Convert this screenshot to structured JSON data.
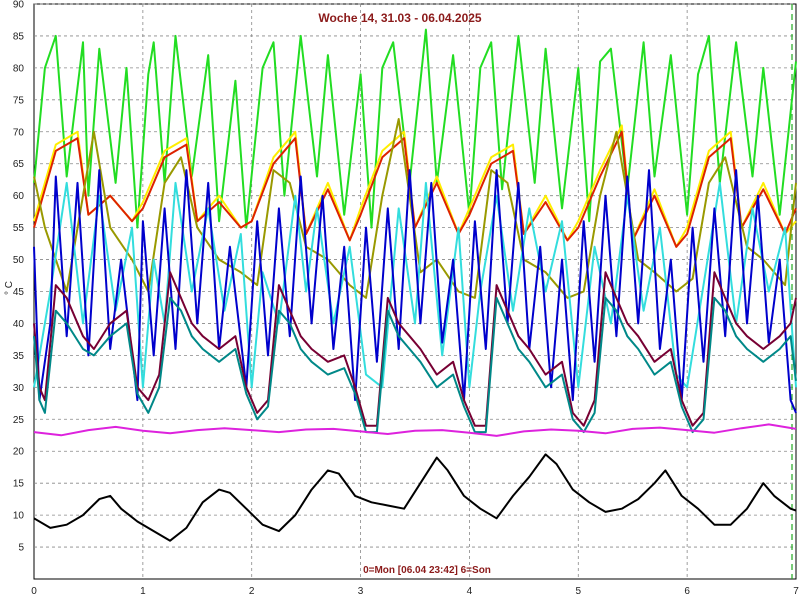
{
  "chart_data": {
    "type": "line",
    "title": "Woche 14, 31.03 - 06.04.2025",
    "footer": "0=Mon [06.04 23:42] 6=Son",
    "ylabel": "° C",
    "xlim": [
      0,
      7
    ],
    "ylim": [
      0,
      90
    ],
    "x_ticks": [
      "0",
      "1",
      "2",
      "3",
      "4",
      "5",
      "6",
      "7"
    ],
    "y_ticks": [
      "5",
      "10",
      "15",
      "20",
      "25",
      "30",
      "35",
      "40",
      "45",
      "50",
      "55",
      "60",
      "65",
      "70",
      "75",
      "80",
      "85",
      "90"
    ],
    "grid": true,
    "legend": "none",
    "series": [
      {
        "color": "#22dd22",
        "x": [
          0,
          0.1,
          0.2,
          0.3,
          0.45,
          0.5,
          0.6,
          0.75,
          0.85,
          0.95,
          1.05,
          1.1,
          1.2,
          1.3,
          1.45,
          1.6,
          1.7,
          1.85,
          1.95,
          2.1,
          2.2,
          2.3,
          2.45,
          2.6,
          2.7,
          2.85,
          3.0,
          3.1,
          3.2,
          3.3,
          3.45,
          3.6,
          3.7,
          3.85,
          4.0,
          4.1,
          4.2,
          4.3,
          4.45,
          4.6,
          4.7,
          4.85,
          5.0,
          5.1,
          5.2,
          5.3,
          5.45,
          5.6,
          5.7,
          5.85,
          6.0,
          6.1,
          6.2,
          6.3,
          6.45,
          6.6,
          6.7,
          6.85,
          7.0
        ],
        "y": [
          62,
          80,
          85,
          63,
          84,
          60,
          83,
          62,
          80,
          55,
          79,
          84,
          62,
          85,
          63,
          82,
          56,
          78,
          55,
          80,
          84,
          60,
          85,
          63,
          82,
          57,
          79,
          55,
          80,
          84,
          62,
          86,
          62,
          82,
          57,
          80,
          84,
          61,
          85,
          62,
          83,
          58,
          80,
          56,
          81,
          83,
          61,
          84,
          63,
          82,
          57,
          79,
          85,
          62,
          84,
          63,
          80,
          57,
          81
        ]
      },
      {
        "color": "#ffee00",
        "x": [
          0,
          0.2,
          0.4,
          0.5,
          0.7,
          0.9,
          1.0,
          1.2,
          1.4,
          1.5,
          1.7,
          1.9,
          2.0,
          2.2,
          2.4,
          2.5,
          2.7,
          2.9,
          3.0,
          3.2,
          3.4,
          3.5,
          3.7,
          3.9,
          4.0,
          4.2,
          4.4,
          4.5,
          4.7,
          4.9,
          5.0,
          5.2,
          5.4,
          5.5,
          5.7,
          5.9,
          6.0,
          6.2,
          6.4,
          6.5,
          6.7,
          6.9,
          7.0
        ],
        "y": [
          56,
          68,
          70,
          57,
          60,
          56,
          59,
          67,
          69,
          56,
          60,
          55,
          56,
          66,
          70,
          54,
          62,
          53,
          58,
          67,
          70,
          55,
          63,
          54,
          58,
          66,
          68,
          54,
          60,
          53,
          56,
          64,
          71,
          53,
          61,
          52,
          55,
          67,
          70,
          55,
          62,
          54,
          56
        ]
      },
      {
        "color": "#dd2200",
        "x": [
          0,
          0.2,
          0.4,
          0.5,
          0.7,
          0.9,
          1.0,
          1.2,
          1.4,
          1.5,
          1.7,
          1.9,
          2.0,
          2.2,
          2.4,
          2.5,
          2.7,
          2.9,
          3.0,
          3.2,
          3.4,
          3.5,
          3.7,
          3.9,
          4.0,
          4.2,
          4.4,
          4.5,
          4.7,
          4.9,
          5.0,
          5.2,
          5.4,
          5.5,
          5.7,
          5.9,
          6.0,
          6.2,
          6.4,
          6.5,
          6.7,
          6.9,
          7.0
        ],
        "y": [
          55,
          67,
          69,
          57,
          60,
          56,
          58,
          66,
          68,
          56,
          59,
          55,
          56,
          65,
          69,
          54,
          61,
          53,
          57,
          66,
          69,
          55,
          62,
          54,
          57,
          65,
          67,
          54,
          59,
          53,
          55,
          63,
          70,
          53,
          60,
          52,
          54,
          66,
          69,
          55,
          61,
          54,
          58
        ]
      },
      {
        "color": "#999900",
        "x": [
          0,
          0.1,
          0.3,
          0.55,
          0.7,
          0.9,
          1.05,
          1.2,
          1.35,
          1.5,
          1.7,
          1.9,
          2.05,
          2.2,
          2.35,
          2.5,
          2.7,
          2.9,
          3.05,
          3.2,
          3.35,
          3.55,
          3.7,
          3.9,
          4.05,
          4.2,
          4.35,
          4.5,
          4.7,
          4.9,
          5.05,
          5.2,
          5.35,
          5.55,
          5.7,
          5.9,
          6.05,
          6.2,
          6.35,
          6.55,
          6.7,
          6.9,
          7.0
        ],
        "y": [
          63,
          55,
          45,
          70,
          55,
          50,
          45,
          62,
          66,
          55,
          50,
          48,
          46,
          64,
          62,
          52,
          50,
          46,
          44,
          60,
          72,
          48,
          50,
          45,
          44,
          64,
          62,
          50,
          48,
          44,
          45,
          60,
          70,
          50,
          48,
          45,
          47,
          62,
          66,
          52,
          50,
          46,
          62
        ]
      },
      {
        "color": "#33dddd",
        "x": [
          0,
          0.15,
          0.3,
          0.45,
          0.6,
          0.75,
          0.9,
          1.0,
          1.1,
          1.2,
          1.3,
          1.45,
          1.6,
          1.75,
          1.9,
          2.0,
          2.1,
          2.25,
          2.4,
          2.5,
          2.6,
          2.75,
          2.9,
          3.05,
          3.2,
          3.35,
          3.5,
          3.6,
          3.75,
          3.9,
          4.0,
          4.1,
          4.25,
          4.4,
          4.55,
          4.7,
          4.85,
          5.0,
          5.15,
          5.3,
          5.45,
          5.6,
          5.75,
          5.9,
          6.0,
          6.15,
          6.3,
          6.45,
          6.6,
          6.75,
          6.9,
          7.0
        ],
        "y": [
          30,
          45,
          62,
          40,
          60,
          42,
          55,
          30,
          50,
          40,
          62,
          45,
          58,
          42,
          54,
          30,
          48,
          40,
          60,
          45,
          58,
          40,
          52,
          32,
          30,
          58,
          40,
          62,
          35,
          55,
          30,
          45,
          60,
          42,
          58,
          45,
          56,
          30,
          52,
          40,
          60,
          42,
          55,
          32,
          30,
          46,
          62,
          40,
          58,
          45,
          55,
          30
        ]
      },
      {
        "color": "#0000cc",
        "x": [
          0,
          0.05,
          0.15,
          0.2,
          0.3,
          0.4,
          0.5,
          0.6,
          0.7,
          0.8,
          0.95,
          1.0,
          1.1,
          1.2,
          1.3,
          1.4,
          1.5,
          1.6,
          1.7,
          1.8,
          1.95,
          2.05,
          2.15,
          2.25,
          2.35,
          2.45,
          2.55,
          2.65,
          2.75,
          2.85,
          2.95,
          3.05,
          3.15,
          3.25,
          3.35,
          3.45,
          3.55,
          3.65,
          3.75,
          3.85,
          3.95,
          4.05,
          4.15,
          4.25,
          4.35,
          4.45,
          4.55,
          4.65,
          4.75,
          4.85,
          4.95,
          5.05,
          5.15,
          5.25,
          5.35,
          5.45,
          5.55,
          5.65,
          5.75,
          5.85,
          5.95,
          6.05,
          6.15,
          6.25,
          6.35,
          6.45,
          6.55,
          6.65,
          6.75,
          6.85,
          6.95,
          7.0
        ],
        "y": [
          52,
          28,
          40,
          63,
          38,
          62,
          35,
          64,
          36,
          50,
          28,
          56,
          35,
          58,
          36,
          64,
          40,
          62,
          36,
          52,
          30,
          56,
          35,
          58,
          38,
          63,
          40,
          60,
          36,
          52,
          28,
          55,
          34,
          58,
          36,
          64,
          40,
          62,
          37,
          50,
          28,
          56,
          36,
          64,
          40,
          62,
          36,
          52,
          30,
          50,
          28,
          56,
          34,
          60,
          38,
          63,
          40,
          64,
          36,
          50,
          28,
          55,
          34,
          58,
          38,
          64,
          40,
          60,
          37,
          50,
          28,
          26
        ]
      },
      {
        "color": "#770033",
        "x": [
          0,
          0.05,
          0.1,
          0.2,
          0.3,
          0.45,
          0.55,
          0.7,
          0.85,
          0.95,
          1.05,
          1.15,
          1.25,
          1.35,
          1.45,
          1.55,
          1.7,
          1.85,
          1.95,
          2.05,
          2.15,
          2.25,
          2.35,
          2.45,
          2.55,
          2.7,
          2.85,
          2.95,
          3.05,
          3.15,
          3.25,
          3.35,
          3.45,
          3.55,
          3.7,
          3.85,
          3.95,
          4.05,
          4.15,
          4.25,
          4.35,
          4.45,
          4.55,
          4.7,
          4.85,
          4.95,
          5.05,
          5.15,
          5.25,
          5.35,
          5.45,
          5.55,
          5.7,
          5.85,
          5.95,
          6.05,
          6.15,
          6.25,
          6.35,
          6.45,
          6.55,
          6.7,
          6.85,
          6.95,
          7.0
        ],
        "y": [
          40,
          30,
          28,
          46,
          44,
          38,
          36,
          40,
          42,
          30,
          28,
          32,
          48,
          44,
          40,
          38,
          36,
          38,
          30,
          26,
          28,
          46,
          42,
          38,
          36,
          34,
          35,
          30,
          24,
          24,
          44,
          40,
          38,
          36,
          32,
          34,
          28,
          24,
          24,
          46,
          42,
          38,
          36,
          32,
          34,
          26,
          24,
          28,
          48,
          44,
          40,
          38,
          34,
          36,
          28,
          24,
          26,
          48,
          44,
          40,
          38,
          36,
          38,
          40,
          44
        ]
      },
      {
        "color": "#008888",
        "x": [
          0,
          0.05,
          0.1,
          0.2,
          0.3,
          0.45,
          0.55,
          0.7,
          0.85,
          0.95,
          1.05,
          1.15,
          1.25,
          1.35,
          1.45,
          1.55,
          1.7,
          1.85,
          1.95,
          2.05,
          2.15,
          2.25,
          2.35,
          2.45,
          2.55,
          2.7,
          2.85,
          2.95,
          3.05,
          3.15,
          3.25,
          3.35,
          3.45,
          3.55,
          3.7,
          3.85,
          3.95,
          4.05,
          4.15,
          4.25,
          4.35,
          4.45,
          4.55,
          4.7,
          4.85,
          4.95,
          5.05,
          5.15,
          5.25,
          5.35,
          5.45,
          5.55,
          5.7,
          5.85,
          5.95,
          6.05,
          6.15,
          6.25,
          6.35,
          6.45,
          6.55,
          6.7,
          6.85,
          6.95,
          7.0
        ],
        "y": [
          38,
          28,
          26,
          42,
          40,
          36,
          35,
          38,
          40,
          29,
          26,
          30,
          44,
          42,
          38,
          36,
          34,
          36,
          29,
          25,
          27,
          42,
          40,
          36,
          34,
          32,
          33,
          29,
          23,
          23,
          42,
          38,
          36,
          34,
          30,
          32,
          27,
          23,
          23,
          44,
          40,
          36,
          34,
          30,
          32,
          25,
          23,
          26,
          44,
          42,
          38,
          36,
          32,
          34,
          27,
          23,
          25,
          44,
          42,
          38,
          36,
          34,
          36,
          38,
          31
        ]
      },
      {
        "color": "#dd22dd",
        "x": [
          0,
          0.25,
          0.5,
          0.75,
          1.0,
          1.25,
          1.5,
          1.75,
          2.0,
          2.25,
          2.5,
          2.75,
          3.0,
          3.25,
          3.5,
          3.75,
          4.0,
          4.25,
          4.5,
          4.75,
          5.0,
          5.25,
          5.5,
          5.75,
          6.0,
          6.25,
          6.5,
          6.75,
          7.0
        ],
        "y": [
          23,
          22.5,
          23.3,
          23.8,
          23.2,
          22.8,
          23.3,
          23.6,
          23.3,
          23,
          23.4,
          23.5,
          23.1,
          22.7,
          23.2,
          23.3,
          22.9,
          22.4,
          23.1,
          23.4,
          23.2,
          22.8,
          23.5,
          23.7,
          23.3,
          22.9,
          23.6,
          24.2,
          23.5
        ]
      },
      {
        "color": "#000000",
        "x": [
          0,
          0.15,
          0.3,
          0.45,
          0.6,
          0.7,
          0.8,
          0.95,
          1.1,
          1.25,
          1.4,
          1.55,
          1.7,
          1.8,
          1.95,
          2.1,
          2.25,
          2.4,
          2.55,
          2.7,
          2.8,
          2.95,
          3.1,
          3.25,
          3.4,
          3.55,
          3.7,
          3.8,
          3.95,
          4.1,
          4.25,
          4.4,
          4.55,
          4.7,
          4.8,
          4.95,
          5.1,
          5.25,
          5.4,
          5.55,
          5.7,
          5.8,
          5.95,
          6.1,
          6.25,
          6.4,
          6.55,
          6.7,
          6.8,
          6.95,
          7.0
        ],
        "y": [
          9.5,
          8,
          8.5,
          10,
          12.5,
          13,
          11,
          9,
          7.5,
          6,
          8,
          12,
          14,
          13.5,
          11,
          8.5,
          7.5,
          10,
          14,
          17,
          16.5,
          13,
          12,
          11.5,
          11,
          15,
          19,
          17,
          13,
          11,
          9.5,
          13,
          16,
          19.5,
          18,
          14,
          12,
          10.5,
          11,
          12.5,
          15,
          17,
          13,
          11,
          8.5,
          8.5,
          11,
          15,
          13,
          11,
          10.7
        ]
      }
    ]
  }
}
